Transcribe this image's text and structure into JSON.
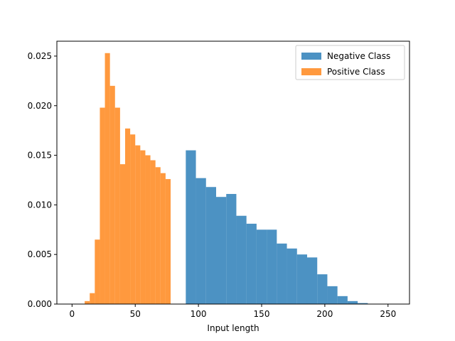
{
  "chart_data": {
    "type": "histogram",
    "xlabel": "Input length",
    "ylabel": "",
    "title": "",
    "xlim": [
      -12,
      267
    ],
    "ylim": [
      0,
      0.0265
    ],
    "xticks": [
      0,
      50,
      100,
      150,
      200,
      250
    ],
    "yticks": [
      0.0,
      0.005,
      0.01,
      0.015,
      0.02,
      0.025
    ],
    "ytick_labels": [
      "0.000",
      "0.005",
      "0.010",
      "0.015",
      "0.020",
      "0.025"
    ],
    "grid": false,
    "legend": {
      "placement": "top-right"
    },
    "series": [
      {
        "name": "Negative Class",
        "color": "#1f77b4",
        "alpha": 0.8,
        "bins": [
          {
            "x0": 90,
            "x1": 98,
            "y": 0.0155
          },
          {
            "x0": 98,
            "x1": 106,
            "y": 0.0127
          },
          {
            "x0": 106,
            "x1": 114,
            "y": 0.0118
          },
          {
            "x0": 114,
            "x1": 122,
            "y": 0.0108
          },
          {
            "x0": 122,
            "x1": 130,
            "y": 0.0111
          },
          {
            "x0": 130,
            "x1": 138,
            "y": 0.0089
          },
          {
            "x0": 138,
            "x1": 146,
            "y": 0.0081
          },
          {
            "x0": 146,
            "x1": 154,
            "y": 0.0075
          },
          {
            "x0": 154,
            "x1": 162,
            "y": 0.0075
          },
          {
            "x0": 162,
            "x1": 170,
            "y": 0.0061
          },
          {
            "x0": 170,
            "x1": 178,
            "y": 0.0056
          },
          {
            "x0": 178,
            "x1": 186,
            "y": 0.005
          },
          {
            "x0": 186,
            "x1": 194,
            "y": 0.0047
          },
          {
            "x0": 194,
            "x1": 202,
            "y": 0.003
          },
          {
            "x0": 202,
            "x1": 210,
            "y": 0.0018
          },
          {
            "x0": 210,
            "x1": 218,
            "y": 0.0008
          },
          {
            "x0": 218,
            "x1": 226,
            "y": 0.0003
          },
          {
            "x0": 226,
            "x1": 234,
            "y": 0.0001
          },
          {
            "x0": 234,
            "x1": 242,
            "y": 3e-05
          }
        ]
      },
      {
        "name": "Positive Class",
        "color": "#ff7f0e",
        "alpha": 0.8,
        "bins": [
          {
            "x0": 10,
            "x1": 14,
            "y": 0.0003
          },
          {
            "x0": 14,
            "x1": 18,
            "y": 0.0011
          },
          {
            "x0": 18,
            "x1": 22,
            "y": 0.0065
          },
          {
            "x0": 22,
            "x1": 26,
            "y": 0.0198
          },
          {
            "x0": 26,
            "x1": 30,
            "y": 0.0253
          },
          {
            "x0": 30,
            "x1": 34,
            "y": 0.022
          },
          {
            "x0": 34,
            "x1": 38,
            "y": 0.0198
          },
          {
            "x0": 38,
            "x1": 42,
            "y": 0.0141
          },
          {
            "x0": 42,
            "x1": 46,
            "y": 0.0177
          },
          {
            "x0": 46,
            "x1": 50,
            "y": 0.0171
          },
          {
            "x0": 50,
            "x1": 54,
            "y": 0.016
          },
          {
            "x0": 54,
            "x1": 58,
            "y": 0.0155
          },
          {
            "x0": 58,
            "x1": 62,
            "y": 0.015
          },
          {
            "x0": 62,
            "x1": 66,
            "y": 0.0145
          },
          {
            "x0": 66,
            "x1": 70,
            "y": 0.0138
          },
          {
            "x0": 70,
            "x1": 74,
            "y": 0.0132
          },
          {
            "x0": 74,
            "x1": 78,
            "y": 0.0126
          }
        ]
      }
    ]
  }
}
